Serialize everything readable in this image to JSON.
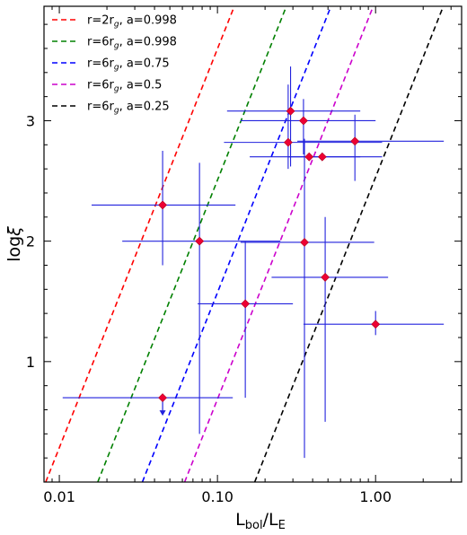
{
  "chart_data": {
    "type": "scatter",
    "xscale": "log",
    "xlim": [
      0.008,
      3.5
    ],
    "ylim": [
      0.0,
      3.95
    ],
    "xlabel_main": "L",
    "xlabel_sub1": "bol",
    "xlabel_mid": "/L",
    "xlabel_sub2": "E",
    "ylabel_main": "log",
    "ylabel_greek": "ξ",
    "x_ticks": [
      {
        "value": 0.01,
        "label": "0.01"
      },
      {
        "value": 0.1,
        "label": "0.10"
      },
      {
        "value": 1.0,
        "label": "1.00"
      }
    ],
    "y_ticks": [
      {
        "value": 1,
        "label": "1"
      },
      {
        "value": 2,
        "label": "2"
      },
      {
        "value": 3,
        "label": "3"
      }
    ],
    "grid": false,
    "legend_position": "top-left",
    "lines": [
      {
        "label_main": "r=2r",
        "label_sub": "g",
        "label_tail": ", a=0.998",
        "color": "#ff0000",
        "x_at_y0": 0.0082
      },
      {
        "label_main": "r=6r",
        "label_sub": "g",
        "label_tail": ", a=0.998",
        "color": "#008000",
        "x_at_y0": 0.0175
      },
      {
        "label_main": "r=6r",
        "label_sub": "g",
        "label_tail": ", a=0.75",
        "color": "#0000ff",
        "x_at_y0": 0.0335
      },
      {
        "label_main": "r=6r",
        "label_sub": "g",
        "label_tail": ", a=0.5",
        "color": "#cc00cc",
        "x_at_y0": 0.062
      },
      {
        "label_main": "r=6r",
        "label_sub": "g",
        "label_tail": ", a=0.25",
        "color": "#000000",
        "x_at_y0": 0.172
      }
    ],
    "line_slope_logx_per_logxi": 0.302,
    "points": [
      {
        "x": 0.045,
        "y": 2.3,
        "xerr": [
          0.016,
          0.13
        ],
        "yerr": [
          1.8,
          2.75
        ]
      },
      {
        "x": 0.077,
        "y": 2.0,
        "xerr": [
          0.025,
          0.25
        ],
        "yerr": [
          0.4,
          2.65
        ]
      },
      {
        "x": 0.045,
        "y": 0.7,
        "xerr": [
          0.0105,
          0.125
        ],
        "yerr": null,
        "upper_limit": true
      },
      {
        "x": 0.15,
        "y": 1.48,
        "xerr": [
          0.075,
          0.3
        ],
        "yerr": [
          0.7,
          2.0
        ]
      },
      {
        "x": 0.29,
        "y": 3.08,
        "xerr": [
          0.115,
          0.8
        ],
        "yerr": [
          2.62,
          3.45
        ]
      },
      {
        "x": 0.28,
        "y": 2.82,
        "xerr": [
          0.11,
          1.1
        ],
        "yerr": [
          2.6,
          3.3
        ]
      },
      {
        "x": 0.35,
        "y": 3.0,
        "xerr": [
          0.14,
          1.0
        ],
        "yerr": [
          2.72,
          3.18
        ]
      },
      {
        "x": 0.38,
        "y": 2.7,
        "xerr": [
          0.16,
          1.1
        ],
        "yerr": null
      },
      {
        "x": 0.46,
        "y": 2.7,
        "xerr": [
          0.28,
          0.8
        ],
        "yerr": null
      },
      {
        "x": 0.74,
        "y": 2.83,
        "xerr": [
          0.32,
          2.7
        ],
        "yerr": [
          2.5,
          3.05
        ]
      },
      {
        "x": 0.355,
        "y": 1.99,
        "xerr": [
          0.14,
          0.98
        ],
        "yerr": [
          0.2,
          2.85
        ]
      },
      {
        "x": 0.48,
        "y": 1.7,
        "xerr": [
          0.22,
          1.2
        ],
        "yerr": [
          0.5,
          2.2
        ]
      },
      {
        "x": 1.0,
        "y": 1.31,
        "xerr": [
          0.35,
          2.7
        ],
        "yerr": [
          1.22,
          1.42
        ]
      }
    ],
    "errorbar_color": "#2222dd",
    "marker_color": "#ee0033"
  }
}
